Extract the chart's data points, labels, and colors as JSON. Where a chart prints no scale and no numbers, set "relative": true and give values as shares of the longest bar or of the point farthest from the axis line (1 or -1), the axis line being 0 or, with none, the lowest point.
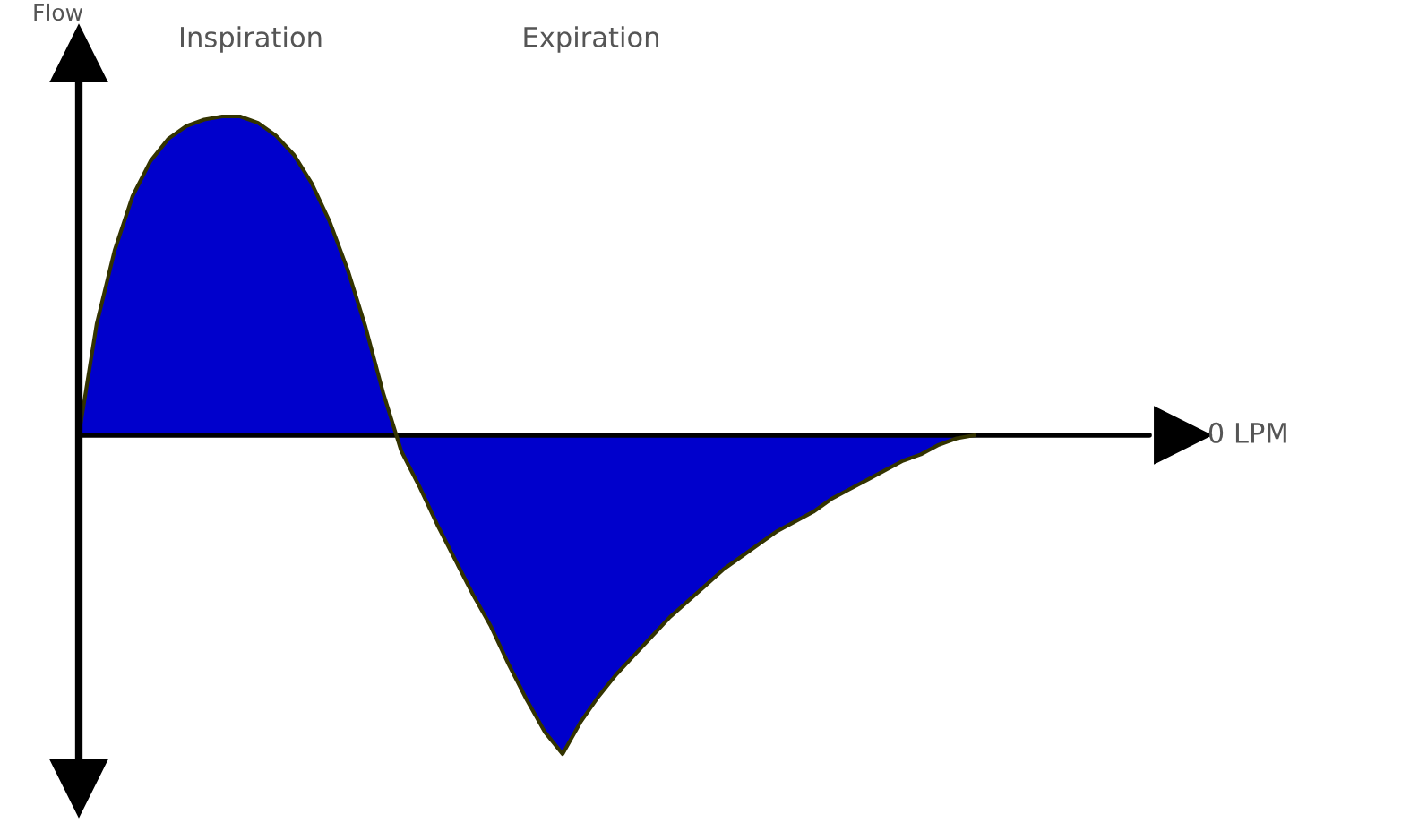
{
  "chart_data": {
    "type": "area",
    "relative": true,
    "ylabel": "Flow",
    "annotations": [
      "Inspiration",
      "Expiration"
    ],
    "ref_lines": [
      {
        "axis": "y",
        "value": 0,
        "label": "0 LPM",
        "color": "#000000"
      }
    ],
    "categories": [
      null,
      null,
      null,
      null,
      null,
      null,
      null,
      null,
      null,
      null,
      null,
      null,
      null,
      null,
      null,
      null,
      null,
      null,
      null,
      null,
      null,
      null,
      null,
      null,
      null,
      null,
      null,
      null,
      null,
      null,
      null,
      null,
      null,
      null,
      null,
      null,
      null,
      null,
      null,
      null,
      null,
      null,
      null,
      null,
      null,
      null,
      null,
      null,
      null,
      null,
      null
    ],
    "series": [
      {
        "color": "#0000cc",
        "values": [
          0,
          0.35,
          0.58,
          0.75,
          0.86,
          0.93,
          0.97,
          0.99,
          1.0,
          1.0,
          0.98,
          0.94,
          0.88,
          0.79,
          0.67,
          0.52,
          0.34,
          0.13,
          -0.05,
          -0.16,
          -0.28,
          -0.39,
          -0.5,
          -0.6,
          -0.72,
          -0.83,
          -0.93,
          -1.0,
          -0.9,
          -0.82,
          -0.75,
          -0.69,
          -0.63,
          -0.57,
          -0.52,
          -0.47,
          -0.42,
          -0.38,
          -0.34,
          -0.3,
          -0.27,
          -0.24,
          -0.2,
          -0.17,
          -0.14,
          -0.11,
          -0.08,
          -0.06,
          -0.03,
          -0.01,
          0
        ]
      }
    ]
  }
}
